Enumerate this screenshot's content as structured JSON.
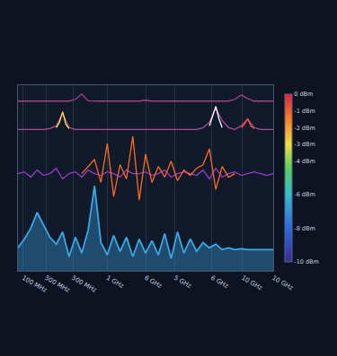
{
  "chart_data": {
    "type": "line",
    "x": [
      0,
      0.25,
      0.5,
      0.75,
      1,
      1.25,
      1.5,
      1.75,
      2,
      2.25,
      2.5,
      2.75,
      3,
      3.25,
      3.5,
      3.75,
      4,
      4.25,
      4.5,
      4.75,
      5,
      5.25,
      5.5,
      5.75,
      6,
      6.25,
      6.5,
      6.75,
      7,
      7.25,
      7.5,
      7.75,
      8,
      8.25,
      8.5,
      8.75,
      9,
      9.25,
      9.5,
      9.75,
      10
    ],
    "xlim": [
      0,
      10
    ],
    "xticks": [
      {
        "value": 0.2,
        "label": "100 MHz"
      },
      {
        "value": 1.1,
        "label": "500 MHz"
      },
      {
        "value": 2.15,
        "label": "500 MHz"
      },
      {
        "value": 3.5,
        "label": "1 GHz"
      },
      {
        "value": 5.0,
        "label": "6 GHz"
      },
      {
        "value": 6.15,
        "label": "5 GHz"
      },
      {
        "value": 7.6,
        "label": "6 GHz"
      },
      {
        "value": 8.8,
        "label": "10 GHz"
      },
      {
        "value": 10,
        "label": "10 GHz"
      }
    ],
    "ylim": [
      0,
      10.5
    ],
    "tick_labels": "x",
    "grid": true,
    "series": [
      {
        "color": "#a8408c",
        "type": "line",
        "values": [
          9.6,
          9.6,
          9.6,
          9.6,
          9.6,
          9.6,
          9.6,
          9.6,
          9.6,
          9.7,
          10.0,
          9.62,
          9.6,
          9.6,
          9.6,
          9.6,
          9.6,
          9.6,
          9.6,
          9.6,
          9.65,
          9.6,
          9.6,
          9.6,
          9.6,
          9.6,
          9.6,
          9.6,
          9.6,
          9.6,
          9.6,
          9.6,
          9.6,
          9.6,
          9.7,
          9.95,
          9.75,
          9.6,
          9.6,
          9.6,
          9.6
        ]
      },
      {
        "color": "#b04a9a",
        "type": "line",
        "values": [
          8.0,
          8.0,
          8.0,
          8.0,
          8.0,
          8.05,
          8.2,
          8.9,
          8.1,
          8.0,
          8.0,
          8.0,
          8.0,
          8.0,
          8.0,
          8.0,
          8.0,
          8.0,
          8.0,
          8.0,
          8.0,
          8.0,
          8.0,
          8.0,
          8.0,
          8.0,
          8.0,
          8.0,
          8.0,
          8.1,
          8.4,
          9.2,
          8.5,
          8.1,
          8.0,
          8.2,
          8.6,
          8.1,
          8.0,
          8.0,
          8.0
        ]
      },
      {
        "color": "#ffe04a",
        "type": "line",
        "x": [
          1.5,
          1.625,
          1.75,
          1.875,
          2.0
        ],
        "values": [
          8.1,
          8.4,
          9.0,
          8.3,
          8.05
        ]
      },
      {
        "color": "#ffffff",
        "type": "line",
        "x": [
          7.5,
          7.625,
          7.75,
          7.875,
          8.0
        ],
        "values": [
          8.2,
          8.7,
          9.3,
          8.6,
          8.1
        ]
      },
      {
        "color": "#ff5030",
        "type": "line",
        "x": [
          8.75,
          8.875,
          9.0,
          9.125,
          9.25
        ],
        "values": [
          8.1,
          8.3,
          8.6,
          8.2,
          8.05
        ]
      },
      {
        "color": "#9a3cc8",
        "type": "line",
        "values": [
          5.5,
          5.6,
          5.3,
          5.7,
          5.4,
          5.5,
          5.8,
          5.2,
          5.5,
          5.6,
          5.3,
          5.7,
          5.5,
          5.4,
          5.6,
          5.5,
          5.3,
          5.7,
          5.5,
          5.5,
          5.6,
          5.4,
          5.5,
          5.7,
          5.3,
          5.5,
          5.6,
          5.5,
          5.4,
          5.7,
          5.2,
          5.8,
          5.3,
          5.5,
          5.6,
          5.4,
          5.5,
          5.6,
          5.5,
          5.4,
          5.5
        ]
      },
      {
        "color": "#ff6a20",
        "type": "line",
        "x": [
          2.5,
          2.75,
          3,
          3.25,
          3.5,
          3.75,
          4,
          4.25,
          4.5,
          4.75,
          5,
          5.25,
          5.5,
          5.75,
          6,
          6.25,
          6.5,
          6.75,
          7,
          7.25,
          7.5,
          7.75,
          8,
          8.25,
          8.5
        ],
        "values": [
          5.5,
          5.9,
          6.3,
          5.0,
          7.2,
          4.2,
          6.0,
          5.2,
          7.6,
          4.0,
          6.6,
          5.0,
          5.9,
          5.3,
          6.2,
          5.1,
          5.7,
          5.4,
          5.8,
          6.0,
          6.9,
          4.6,
          5.9,
          5.3,
          5.5
        ]
      },
      {
        "color": "#3aa8e8",
        "type": "area",
        "values": [
          1.3,
          1.8,
          2.4,
          3.3,
          2.6,
          1.9,
          1.5,
          2.2,
          0.8,
          1.9,
          1.0,
          2.3,
          4.8,
          1.6,
          0.9,
          2.0,
          1.1,
          1.9,
          0.8,
          1.8,
          1.0,
          1.7,
          0.9,
          2.1,
          0.7,
          2.2,
          1.0,
          1.8,
          1.1,
          1.6,
          1.3,
          1.5,
          1.2,
          1.3,
          1.2,
          1.25,
          1.2,
          1.2,
          1.2,
          1.2,
          1.2
        ]
      }
    ],
    "colorbar": {
      "range": [
        -10,
        0
      ],
      "ticks": [
        {
          "value": 0,
          "label": "0 dBm"
        },
        {
          "value": -1,
          "label": "-1 dBm"
        },
        {
          "value": -2,
          "label": "-2 dBm"
        },
        {
          "value": -3,
          "label": "-3 dBm"
        },
        {
          "value": -4,
          "label": "-4 dBm"
        },
        {
          "value": -6,
          "label": "-6 dBm"
        },
        {
          "value": -8,
          "label": "-8 dBm"
        },
        {
          "value": -10,
          "label": "-10 dBm"
        }
      ]
    }
  }
}
